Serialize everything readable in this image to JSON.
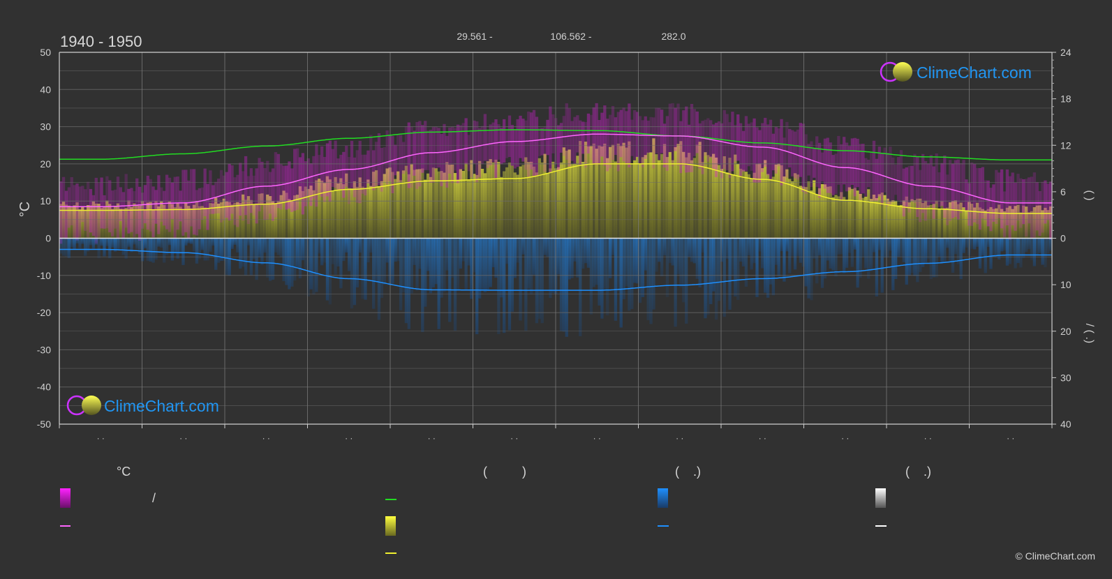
{
  "chart_data": {
    "type": "area",
    "title": "1940 - 1950",
    "header_values": [
      "29.561 -",
      "106.562 -",
      "282.0"
    ],
    "ylabel_left": "°C",
    "ylabel_right_upper": "(   )",
    "ylabel_right_lower": "/ (  .)",
    "ylim_left": [
      -50,
      50
    ],
    "yticks_left": [
      50,
      40,
      30,
      20,
      10,
      0,
      -10,
      -20,
      -30,
      -40,
      -50
    ],
    "ylim_right_upper": [
      0,
      24
    ],
    "yticks_right_upper": [
      24,
      18,
      12,
      6,
      0
    ],
    "ylim_right_lower": [
      0,
      40
    ],
    "yticks_right_lower": [
      10,
      20,
      30,
      40
    ],
    "x_tick_labels": [
      "· ·",
      "· ·",
      "· ·",
      "· ·",
      "· ·",
      "· ·",
      "· ·",
      "· ·",
      "· ·",
      "· ·",
      "· ·",
      "· ·"
    ],
    "months": [
      1,
      2,
      3,
      4,
      5,
      6,
      7,
      8,
      9,
      10,
      11,
      12
    ],
    "series": [
      {
        "key": "daylight",
        "color": "#22dd22",
        "axis": "right_upper",
        "values": [
          10.2,
          10.9,
          11.9,
          12.9,
          13.7,
          14.0,
          13.9,
          13.2,
          12.3,
          11.3,
          10.5,
          10.1
        ]
      },
      {
        "key": "avg_temperature",
        "color": "#ff66ff",
        "axis": "left",
        "values": [
          8.5,
          9.5,
          14,
          18.5,
          23,
          26,
          28,
          27.5,
          24.5,
          19,
          14,
          9.5
        ]
      },
      {
        "key": "avg_sunshine",
        "color": "#f0f030",
        "axis": "right_upper",
        "values": [
          3.6,
          3.7,
          4.4,
          6.3,
          7.4,
          7.7,
          9.6,
          9.6,
          7.6,
          4.9,
          3.8,
          3.2
        ]
      },
      {
        "key": "avg_precipitation",
        "color": "#1e90ff",
        "axis": "right_lower",
        "values": [
          2.4,
          3.1,
          5.3,
          8.7,
          11.1,
          11.2,
          11.2,
          10.1,
          8.7,
          7.2,
          5.4,
          3.6
        ]
      }
    ],
    "grid": true,
    "legend_position": "bottom",
    "legend": {
      "col1_title": "°C",
      "col1_slash": "/",
      "col2_title": "(          )",
      "col3_title": "(    .)",
      "col4_title": "(    .)"
    },
    "colors": {
      "background": "#313131",
      "grid": "#6a6a6a",
      "temp_band": "#e020e0",
      "sun_band": "#c9c92a",
      "precip_band": "#2a6aa0",
      "snow_band": "#bbbbbb"
    },
    "watermark": "ClimeChart.com",
    "copyright": "© ClimeChart.com"
  }
}
